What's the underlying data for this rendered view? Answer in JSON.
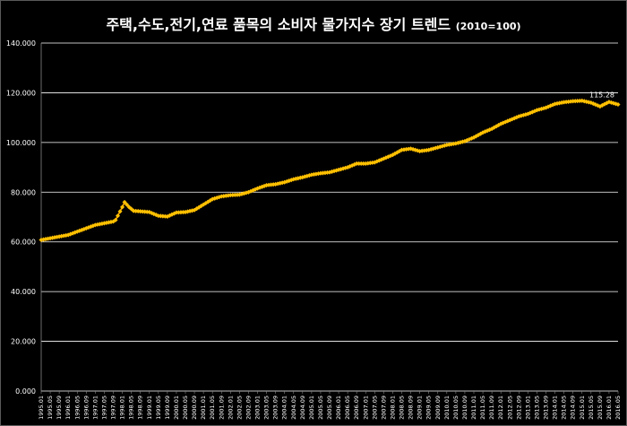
{
  "chart_data": {
    "type": "line",
    "title": "주택,수도,전기,연료 품목의 소비자 물가지수 장기 트렌드",
    "subtitle": "(2010=100)",
    "xlabel": "",
    "ylabel": "",
    "ylim": [
      0,
      140
    ],
    "yticks": [
      "0.000",
      "20.000",
      "40.000",
      "60.000",
      "80.000",
      "100.000",
      "120.000",
      "140.000"
    ],
    "grid": true,
    "legend": "none",
    "colors": {
      "line": "#FFA500",
      "marker": "#FFC000",
      "grid": "#FFFFFF",
      "text": "#FFFFFF",
      "background": "#000000"
    },
    "x_start": "1995.01",
    "x_end": "2016.05",
    "x_tick_labels": [
      "1995.01",
      "1995.05",
      "1995.09",
      "1996.01",
      "1996.05",
      "1996.09",
      "1997.01",
      "1997.05",
      "1997.09",
      "1998.01",
      "1998.05",
      "1998.09",
      "1999.01",
      "1999.05",
      "1999.09",
      "2000.01",
      "2000.05",
      "2000.09",
      "2001.01",
      "2001.05",
      "2001.09",
      "2002.01",
      "2002.05",
      "2002.09",
      "2003.01",
      "2003.05",
      "2003.09",
      "2004.01",
      "2004.05",
      "2004.09",
      "2005.01",
      "2005.05",
      "2005.09",
      "2006.01",
      "2006.05",
      "2006.09",
      "2007.01",
      "2007.05",
      "2007.09",
      "2008.01",
      "2008.05",
      "2008.09",
      "2009.01",
      "2009.05",
      "2009.09",
      "2010.01",
      "2010.05",
      "2010.09",
      "2011.01",
      "2011.05",
      "2011.09",
      "2012.01",
      "2012.05",
      "2012.09",
      "2013.01",
      "2013.05",
      "2013.09",
      "2014.01",
      "2014.05",
      "2014.09",
      "2015.01",
      "2015.05",
      "2015.09",
      "2016.01",
      "2016.05"
    ],
    "anchors": [
      [
        "1995.01",
        60.8
      ],
      [
        "1996.01",
        62.8
      ],
      [
        "1997.01",
        66.8
      ],
      [
        "1997.09",
        68.2
      ],
      [
        "1997.10",
        68.8
      ],
      [
        "1997.11",
        70.5
      ],
      [
        "1998.01",
        74.0
      ],
      [
        "1998.02",
        76.0
      ],
      [
        "1998.04",
        74.0
      ],
      [
        "1998.06",
        72.5
      ],
      [
        "1999.01",
        72.0
      ],
      [
        "1999.05",
        70.5
      ],
      [
        "1999.09",
        70.2
      ],
      [
        "2000.01",
        71.8
      ],
      [
        "2000.05",
        72.0
      ],
      [
        "2000.09",
        72.8
      ],
      [
        "2001.01",
        75.0
      ],
      [
        "2001.05",
        77.2
      ],
      [
        "2001.09",
        78.3
      ],
      [
        "2002.01",
        78.8
      ],
      [
        "2002.05",
        79.0
      ],
      [
        "2002.09",
        80.0
      ],
      [
        "2003.01",
        81.5
      ],
      [
        "2003.05",
        82.8
      ],
      [
        "2003.09",
        83.2
      ],
      [
        "2004.01",
        84.0
      ],
      [
        "2004.05",
        85.2
      ],
      [
        "2004.09",
        86.0
      ],
      [
        "2005.01",
        87.0
      ],
      [
        "2005.05",
        87.6
      ],
      [
        "2005.09",
        88.0
      ],
      [
        "2006.01",
        89.0
      ],
      [
        "2006.05",
        90.0
      ],
      [
        "2006.09",
        91.5
      ],
      [
        "2007.01",
        91.5
      ],
      [
        "2007.05",
        92.0
      ],
      [
        "2007.09",
        93.5
      ],
      [
        "2008.01",
        95.0
      ],
      [
        "2008.05",
        97.0
      ],
      [
        "2008.09",
        97.5
      ],
      [
        "2009.01",
        96.5
      ],
      [
        "2009.05",
        97.0
      ],
      [
        "2009.09",
        98.0
      ],
      [
        "2010.01",
        99.0
      ],
      [
        "2010.05",
        99.6
      ],
      [
        "2010.09",
        100.5
      ],
      [
        "2011.01",
        102.0
      ],
      [
        "2011.05",
        104.0
      ],
      [
        "2011.09",
        105.5
      ],
      [
        "2012.01",
        107.5
      ],
      [
        "2012.05",
        109.0
      ],
      [
        "2012.09",
        110.5
      ],
      [
        "2013.01",
        111.5
      ],
      [
        "2013.05",
        113.0
      ],
      [
        "2013.09",
        114.0
      ],
      [
        "2014.01",
        115.5
      ],
      [
        "2014.05",
        116.2
      ],
      [
        "2014.09",
        116.6
      ],
      [
        "2015.01",
        116.8
      ],
      [
        "2015.05",
        116.0
      ],
      [
        "2015.09",
        114.5
      ],
      [
        "2016.01",
        116.3
      ],
      [
        "2016.05",
        115.28
      ]
    ],
    "last_value_label": "115.28"
  }
}
